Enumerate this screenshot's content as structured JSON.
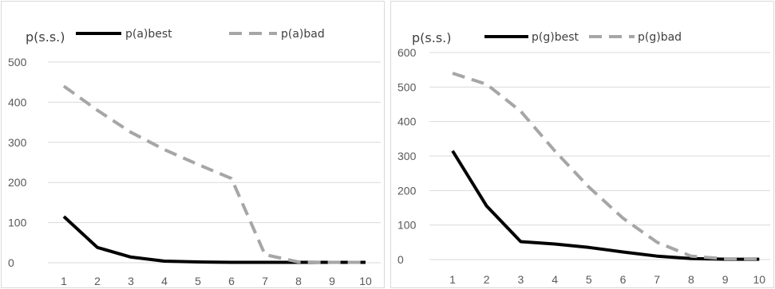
{
  "chart_data": [
    {
      "type": "line",
      "ylabel": "p(s.s.)",
      "x": [
        1,
        2,
        3,
        4,
        5,
        6,
        7,
        8,
        9,
        10
      ],
      "ylim": [
        0,
        500
      ],
      "yticks": [
        0,
        100,
        200,
        300,
        400,
        500
      ],
      "grid": true,
      "legend": "top",
      "series": [
        {
          "name": "p(a)best",
          "style": "solid",
          "color": "#000000",
          "values": [
            115,
            38,
            14,
            4,
            2,
            1,
            1,
            1,
            1,
            1
          ]
        },
        {
          "name": "p(a)bad",
          "style": "dashed",
          "color": "#a6a6a6",
          "values": [
            440,
            380,
            325,
            282,
            245,
            210,
            20,
            2,
            1,
            1
          ]
        }
      ]
    },
    {
      "type": "line",
      "ylabel": "p(s.s.)",
      "x": [
        1,
        2,
        3,
        4,
        5,
        6,
        7,
        8,
        9,
        10
      ],
      "ylim": [
        0,
        600
      ],
      "yticks": [
        0,
        100,
        200,
        300,
        400,
        500,
        600
      ],
      "grid": true,
      "legend": "top",
      "series": [
        {
          "name": "p(g)best",
          "style": "solid",
          "color": "#000000",
          "values": [
            315,
            155,
            52,
            45,
            35,
            22,
            10,
            3,
            1,
            1
          ]
        },
        {
          "name": "p(g)bad",
          "style": "dashed",
          "color": "#a6a6a6",
          "values": [
            540,
            508,
            430,
            315,
            210,
            120,
            50,
            10,
            2,
            2
          ]
        }
      ]
    }
  ]
}
